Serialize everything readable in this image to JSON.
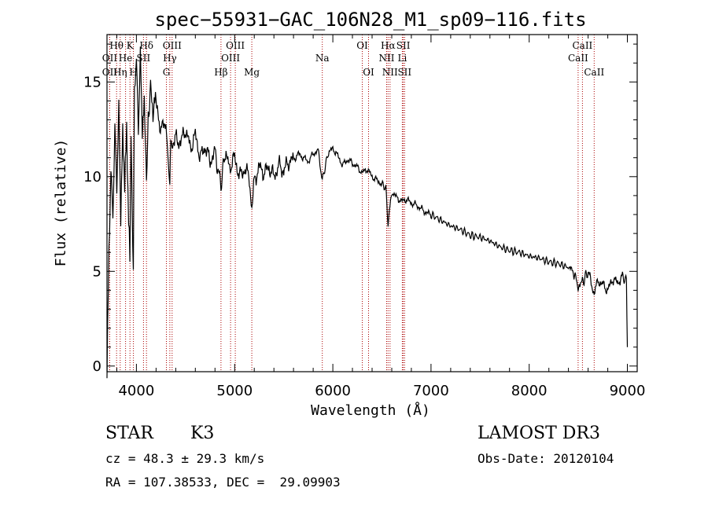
{
  "chart_data": {
    "type": "line",
    "title": "spec−55931−GAC_106N28_M1_sp09−116.fits",
    "xlabel": "Wavelength (Å)",
    "ylabel": "Flux (relative)",
    "xlim": [
      3700,
      9100
    ],
    "ylim": [
      -0.3,
      17.5
    ],
    "x_ticks": [
      4000,
      5000,
      6000,
      7000,
      8000,
      9000
    ],
    "y_ticks": [
      0,
      5,
      10,
      15
    ],
    "grid": false,
    "series": [
      {
        "name": "flux",
        "x": [
          3700,
          3720,
          3740,
          3760,
          3780,
          3800,
          3820,
          3840,
          3860,
          3880,
          3900,
          3920,
          3933,
          3945,
          3968,
          3980,
          4000,
          4020,
          4040,
          4060,
          4080,
          4102,
          4120,
          4150,
          4200,
          4250,
          4300,
          4340,
          4350,
          4380,
          4400,
          4450,
          4500,
          4550,
          4600,
          4650,
          4700,
          4750,
          4800,
          4861,
          4900,
          4950,
          5000,
          5050,
          5100,
          5150,
          5175,
          5200,
          5250,
          5300,
          5350,
          5400,
          5450,
          5500,
          5550,
          5600,
          5650,
          5700,
          5750,
          5800,
          5850,
          5893,
          5950,
          6000,
          6050,
          6100,
          6150,
          6200,
          6250,
          6300,
          6350,
          6400,
          6450,
          6500,
          6540,
          6563,
          6600,
          6650,
          6700,
          6750,
          6800,
          6850,
          6900,
          6950,
          7000,
          7100,
          7200,
          7300,
          7400,
          7500,
          7600,
          7700,
          7800,
          7900,
          8000,
          8100,
          8200,
          8300,
          8400,
          8450,
          8498,
          8542,
          8600,
          8662,
          8700,
          8750,
          8800,
          8850,
          8900,
          8950,
          8990,
          9000
        ],
        "y": [
          0.3,
          6.5,
          11.0,
          8.0,
          12.5,
          9.0,
          13.0,
          7.5,
          12.0,
          10.0,
          12.8,
          8.5,
          6.0,
          11.5,
          5.5,
          14.5,
          15.5,
          12.0,
          16.0,
          12.5,
          14.0,
          9.5,
          13.5,
          14.2,
          13.8,
          12.5,
          12.8,
          9.5,
          12.0,
          11.5,
          12.0,
          11.8,
          12.5,
          11.5,
          12.2,
          11.0,
          11.6,
          10.8,
          11.3,
          9.5,
          11.2,
          10.5,
          11.0,
          10.0,
          10.4,
          10.0,
          8.2,
          9.8,
          10.5,
          10.2,
          10.5,
          10.0,
          10.6,
          10.3,
          10.8,
          10.9,
          11.2,
          11.0,
          10.8,
          11.2,
          11.4,
          9.8,
          11.2,
          11.5,
          11.1,
          10.6,
          10.9,
          10.7,
          10.5,
          10.2,
          10.4,
          10.0,
          9.8,
          9.6,
          9.4,
          7.5,
          9.2,
          8.9,
          8.7,
          8.8,
          8.6,
          8.5,
          8.3,
          8.1,
          8.0,
          7.7,
          7.4,
          7.2,
          6.9,
          6.8,
          6.6,
          6.3,
          6.1,
          6.0,
          5.8,
          5.7,
          5.5,
          5.4,
          5.2,
          5.0,
          4.2,
          4.4,
          5.0,
          3.8,
          4.5,
          4.3,
          4.0,
          4.6,
          4.4,
          4.7,
          4.5,
          1.0
        ]
      }
    ],
    "spectral_lines": [
      {
        "label": "Hθ",
        "wave": 3798,
        "row": 1
      },
      {
        "label": "OII",
        "wave": 3727,
        "row": 2
      },
      {
        "label": "OII",
        "wave": 3727,
        "row": 3
      },
      {
        "label": "Hη",
        "wave": 3835,
        "row": 3
      },
      {
        "label": "He",
        "wave": 3889,
        "row": 2
      },
      {
        "label": "K",
        "wave": 3934,
        "row": 1
      },
      {
        "label": "H",
        "wave": 3969,
        "row": 3
      },
      {
        "label": "SII",
        "wave": 4072,
        "row": 2
      },
      {
        "label": "Hδ",
        "wave": 4102,
        "row": 1
      },
      {
        "label": "OIII",
        "wave": 4363,
        "row": 1
      },
      {
        "label": "Hγ",
        "wave": 4340,
        "row": 2
      },
      {
        "label": "G",
        "wave": 4305,
        "row": 3
      },
      {
        "label": "Hβ",
        "wave": 4861,
        "row": 3
      },
      {
        "label": "OIII",
        "wave": 5007,
        "row": 1
      },
      {
        "label": "OIII",
        "wave": 4959,
        "row": 2
      },
      {
        "label": "Mg",
        "wave": 5175,
        "row": 3
      },
      {
        "label": "Na",
        "wave": 5893,
        "row": 2
      },
      {
        "label": "OI",
        "wave": 6300,
        "row": 1
      },
      {
        "label": "OI",
        "wave": 6364,
        "row": 3
      },
      {
        "label": "Hα",
        "wave": 6563,
        "row": 1
      },
      {
        "label": "NII",
        "wave": 6548,
        "row": 2
      },
      {
        "label": "NII",
        "wave": 6583,
        "row": 3
      },
      {
        "label": "SII",
        "wave": 6717,
        "row": 1
      },
      {
        "label": "Li",
        "wave": 6708,
        "row": 2
      },
      {
        "label": "SII",
        "wave": 6731,
        "row": 3
      },
      {
        "label": "CaII",
        "wave": 8542,
        "row": 1
      },
      {
        "label": "CaII",
        "wave": 8498,
        "row": 2
      },
      {
        "label": "CaII",
        "wave": 8662,
        "row": 3
      }
    ]
  },
  "info": {
    "class": "STAR",
    "subclass": "K3",
    "velocity": "cz = 48.3 ± 29.3 km/s",
    "coords": "RA = 107.38533, DEC =  29.09903",
    "survey": "LAMOST DR3",
    "obs_date": "Obs-Date: 20120104"
  },
  "colors": {
    "line": "#000000",
    "marker": "#aa0000"
  }
}
